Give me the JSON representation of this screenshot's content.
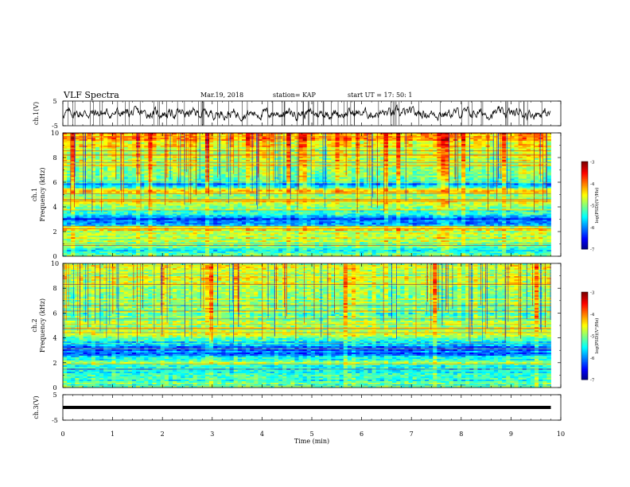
{
  "header": {
    "title": "VLF Spectra",
    "date": "Mar.19, 2018",
    "station": "station= KAP",
    "start": "start  UT =   17: 50: 1"
  },
  "chart_data": [
    {
      "type": "line",
      "panel": "ch1-waveform",
      "ylabel": "ch.1(V)",
      "ylim": [
        -5,
        5
      ],
      "y_ticks": [
        "5",
        "-5"
      ],
      "xlim": [
        0,
        10
      ],
      "x_end": 9.8,
      "series": [
        {
          "mean": 0,
          "amplitude": 1.8
        }
      ]
    },
    {
      "type": "heatmap",
      "panel": "ch1-spectrogram",
      "ylabel": "Frequency (kHz)",
      "ylabel_prefix": "ch.1",
      "ylim": [
        0,
        10
      ],
      "y_ticks": [
        "0",
        "2",
        "4",
        "6",
        "8",
        "10"
      ],
      "xlim": [
        0,
        10
      ],
      "x_end": 9.8,
      "colorbar": {
        "label": "log(PSD)(V²/Hz)",
        "range": [
          -7,
          -3
        ],
        "ticks": [
          "-3",
          "-4",
          "-5",
          "-6",
          "-7"
        ]
      },
      "frequency_profile_log_psd": [
        {
          "f": 0.0,
          "v": -5.0
        },
        {
          "f": 0.4,
          "v": -5.6
        },
        {
          "f": 0.8,
          "v": -5.2
        },
        {
          "f": 1.2,
          "v": -4.7
        },
        {
          "f": 1.8,
          "v": -4.8
        },
        {
          "f": 2.2,
          "v": -4.5
        },
        {
          "f": 2.6,
          "v": -5.7
        },
        {
          "f": 3.0,
          "v": -6.2
        },
        {
          "f": 3.4,
          "v": -5.6
        },
        {
          "f": 3.8,
          "v": -5.0
        },
        {
          "f": 4.3,
          "v": -4.6
        },
        {
          "f": 4.8,
          "v": -5.0
        },
        {
          "f": 5.3,
          "v": -4.3
        },
        {
          "f": 5.8,
          "v": -5.8
        },
        {
          "f": 6.5,
          "v": -4.9
        },
        {
          "f": 7.5,
          "v": -4.8
        },
        {
          "f": 8.5,
          "v": -4.5
        },
        {
          "f": 9.5,
          "v": -4.3
        },
        {
          "f": 10.0,
          "v": -4.2
        }
      ]
    },
    {
      "type": "heatmap",
      "panel": "ch2-spectrogram",
      "ylabel": "Frequency (kHz)",
      "ylabel_prefix": "ch.2",
      "ylim": [
        0,
        10
      ],
      "y_ticks": [
        "0",
        "2",
        "4",
        "6",
        "8",
        "10"
      ],
      "xlim": [
        0,
        10
      ],
      "x_end": 9.8,
      "colorbar": {
        "label": "log(PSD)(V²/Hz)",
        "range": [
          -7,
          -3
        ],
        "ticks": [
          "-3",
          "-4",
          "-5",
          "-6",
          "-7"
        ]
      },
      "frequency_profile_log_psd": [
        {
          "f": 0.0,
          "v": -5.0
        },
        {
          "f": 0.5,
          "v": -5.4
        },
        {
          "f": 1.0,
          "v": -5.3
        },
        {
          "f": 1.5,
          "v": -5.6
        },
        {
          "f": 2.0,
          "v": -5.0
        },
        {
          "f": 2.5,
          "v": -5.8
        },
        {
          "f": 3.0,
          "v": -6.1
        },
        {
          "f": 3.5,
          "v": -5.7
        },
        {
          "f": 4.2,
          "v": -4.8
        },
        {
          "f": 5.0,
          "v": -4.9
        },
        {
          "f": 6.0,
          "v": -5.0
        },
        {
          "f": 7.0,
          "v": -4.9
        },
        {
          "f": 8.0,
          "v": -4.8
        },
        {
          "f": 9.0,
          "v": -4.7
        },
        {
          "f": 10.0,
          "v": -4.8
        }
      ]
    },
    {
      "type": "line",
      "panel": "ch3-waveform",
      "ylabel": "ch.3(V)",
      "ylim": [
        -5,
        5
      ],
      "y_ticks": [
        "5",
        "-5"
      ],
      "xlim": [
        0,
        10
      ],
      "x_end": 9.8,
      "x_ticks": [
        "0",
        "1",
        "2",
        "3",
        "4",
        "5",
        "6",
        "7",
        "8",
        "9",
        "10"
      ],
      "xlabel": "Time (min)",
      "series": [
        {
          "mean": 0,
          "amplitude": 0
        }
      ]
    }
  ]
}
